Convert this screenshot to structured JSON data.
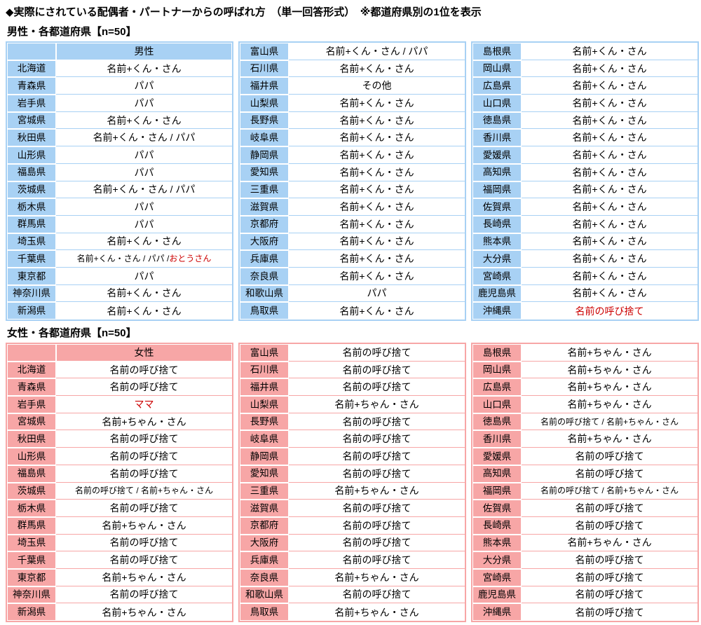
{
  "page": {
    "title": "◆実際にされている配偶者・パートナーからの呼ばれ方　（単一回答形式）　※都道府県別の1位を表示"
  },
  "colors": {
    "male_accent": "#a8d1f4",
    "female_accent": "#f7a6a6",
    "red_text": "#cc0000",
    "cell_bg": "#ffffff"
  },
  "sections": [
    {
      "id": "male",
      "label": "男性・各都道府県【n=50】",
      "column_header": "男性",
      "accent": "#a8d1f4",
      "columns": [
        {
          "has_header": true,
          "rows": [
            {
              "pref": "北海道",
              "value": "名前+くん・さん"
            },
            {
              "pref": "青森県",
              "value": "パパ"
            },
            {
              "pref": "岩手県",
              "value": "パパ"
            },
            {
              "pref": "宮城県",
              "value": "名前+くん・さん"
            },
            {
              "pref": "秋田県",
              "value": "名前+くん・さん / パパ"
            },
            {
              "pref": "山形県",
              "value": "パパ"
            },
            {
              "pref": "福島県",
              "value": "パパ"
            },
            {
              "pref": "茨城県",
              "value": "名前+くん・さん / パパ"
            },
            {
              "pref": "栃木県",
              "value": "パパ"
            },
            {
              "pref": "群馬県",
              "value": "パパ"
            },
            {
              "pref": "埼玉県",
              "value": "名前+くん・さん"
            },
            {
              "pref": "千葉県",
              "parts": [
                {
                  "text": "名前+くん・さん / パパ / "
                },
                {
                  "text": "おとうさん",
                  "red": true
                }
              ]
            },
            {
              "pref": "東京都",
              "value": "パパ"
            },
            {
              "pref": "神奈川県",
              "value": "名前+くん・さん"
            },
            {
              "pref": "新潟県",
              "value": "名前+くん・さん"
            }
          ]
        },
        {
          "has_header": false,
          "rows": [
            {
              "pref": "富山県",
              "value": "名前+くん・さん / パパ"
            },
            {
              "pref": "石川県",
              "value": "名前+くん・さん"
            },
            {
              "pref": "福井県",
              "value": "その他"
            },
            {
              "pref": "山梨県",
              "value": "名前+くん・さん"
            },
            {
              "pref": "長野県",
              "value": "名前+くん・さん"
            },
            {
              "pref": "岐阜県",
              "value": "名前+くん・さん"
            },
            {
              "pref": "静岡県",
              "value": "名前+くん・さん"
            },
            {
              "pref": "愛知県",
              "value": "名前+くん・さん"
            },
            {
              "pref": "三重県",
              "value": "名前+くん・さん"
            },
            {
              "pref": "滋賀県",
              "value": "名前+くん・さん"
            },
            {
              "pref": "京都府",
              "value": "名前+くん・さん"
            },
            {
              "pref": "大阪府",
              "value": "名前+くん・さん"
            },
            {
              "pref": "兵庫県",
              "value": "名前+くん・さん"
            },
            {
              "pref": "奈良県",
              "value": "名前+くん・さん"
            },
            {
              "pref": "和歌山県",
              "value": "パパ"
            },
            {
              "pref": "鳥取県",
              "value": "名前+くん・さん"
            }
          ]
        },
        {
          "has_header": false,
          "rows": [
            {
              "pref": "島根県",
              "value": "名前+くん・さん"
            },
            {
              "pref": "岡山県",
              "value": "名前+くん・さん"
            },
            {
              "pref": "広島県",
              "value": "名前+くん・さん"
            },
            {
              "pref": "山口県",
              "value": "名前+くん・さん"
            },
            {
              "pref": "徳島県",
              "value": "名前+くん・さん"
            },
            {
              "pref": "香川県",
              "value": "名前+くん・さん"
            },
            {
              "pref": "愛媛県",
              "value": "名前+くん・さん"
            },
            {
              "pref": "高知県",
              "value": "名前+くん・さん"
            },
            {
              "pref": "福岡県",
              "value": "名前+くん・さん"
            },
            {
              "pref": "佐賀県",
              "value": "名前+くん・さん"
            },
            {
              "pref": "長崎県",
              "value": "名前+くん・さん"
            },
            {
              "pref": "熊本県",
              "value": "名前+くん・さん"
            },
            {
              "pref": "大分県",
              "value": "名前+くん・さん"
            },
            {
              "pref": "宮崎県",
              "value": "名前+くん・さん"
            },
            {
              "pref": "鹿児島県",
              "value": "名前+くん・さん"
            },
            {
              "pref": "沖縄県",
              "value": "名前の呼び捨て",
              "red": true
            }
          ]
        }
      ]
    },
    {
      "id": "female",
      "label": "女性・各都道府県【n=50】",
      "column_header": "女性",
      "accent": "#f7a6a6",
      "columns": [
        {
          "has_header": true,
          "rows": [
            {
              "pref": "北海道",
              "value": "名前の呼び捨て"
            },
            {
              "pref": "青森県",
              "value": "名前の呼び捨て"
            },
            {
              "pref": "岩手県",
              "value": "ママ",
              "red": true
            },
            {
              "pref": "宮城県",
              "value": "名前+ちゃん・さん"
            },
            {
              "pref": "秋田県",
              "value": "名前の呼び捨て"
            },
            {
              "pref": "山形県",
              "value": "名前の呼び捨て"
            },
            {
              "pref": "福島県",
              "value": "名前の呼び捨て"
            },
            {
              "pref": "茨城県",
              "value": "名前の呼び捨て / 名前+ちゃん・さん"
            },
            {
              "pref": "栃木県",
              "value": "名前の呼び捨て"
            },
            {
              "pref": "群馬県",
              "value": "名前+ちゃん・さん"
            },
            {
              "pref": "埼玉県",
              "value": "名前の呼び捨て"
            },
            {
              "pref": "千葉県",
              "value": "名前の呼び捨て"
            },
            {
              "pref": "東京都",
              "value": "名前+ちゃん・さん"
            },
            {
              "pref": "神奈川県",
              "value": "名前の呼び捨て"
            },
            {
              "pref": "新潟県",
              "value": "名前+ちゃん・さん"
            }
          ]
        },
        {
          "has_header": false,
          "rows": [
            {
              "pref": "富山県",
              "value": "名前の呼び捨て"
            },
            {
              "pref": "石川県",
              "value": "名前の呼び捨て"
            },
            {
              "pref": "福井県",
              "value": "名前の呼び捨て"
            },
            {
              "pref": "山梨県",
              "value": "名前+ちゃん・さん"
            },
            {
              "pref": "長野県",
              "value": "名前の呼び捨て"
            },
            {
              "pref": "岐阜県",
              "value": "名前の呼び捨て"
            },
            {
              "pref": "静岡県",
              "value": "名前の呼び捨て"
            },
            {
              "pref": "愛知県",
              "value": "名前の呼び捨て"
            },
            {
              "pref": "三重県",
              "value": "名前+ちゃん・さん"
            },
            {
              "pref": "滋賀県",
              "value": "名前の呼び捨て"
            },
            {
              "pref": "京都府",
              "value": "名前の呼び捨て"
            },
            {
              "pref": "大阪府",
              "value": "名前の呼び捨て"
            },
            {
              "pref": "兵庫県",
              "value": "名前の呼び捨て"
            },
            {
              "pref": "奈良県",
              "value": "名前+ちゃん・さん"
            },
            {
              "pref": "和歌山県",
              "value": "名前の呼び捨て"
            },
            {
              "pref": "鳥取県",
              "value": "名前+ちゃん・さん"
            }
          ]
        },
        {
          "has_header": false,
          "rows": [
            {
              "pref": "島根県",
              "value": "名前+ちゃん・さん"
            },
            {
              "pref": "岡山県",
              "value": "名前+ちゃん・さん"
            },
            {
              "pref": "広島県",
              "value": "名前+ちゃん・さん"
            },
            {
              "pref": "山口県",
              "value": "名前+ちゃん・さん"
            },
            {
              "pref": "徳島県",
              "value": "名前の呼び捨て / 名前+ちゃん・さん"
            },
            {
              "pref": "香川県",
              "value": "名前+ちゃん・さん"
            },
            {
              "pref": "愛媛県",
              "value": "名前の呼び捨て"
            },
            {
              "pref": "高知県",
              "value": "名前の呼び捨て"
            },
            {
              "pref": "福岡県",
              "value": "名前の呼び捨て / 名前+ちゃん・さん"
            },
            {
              "pref": "佐賀県",
              "value": "名前の呼び捨て"
            },
            {
              "pref": "長崎県",
              "value": "名前の呼び捨て"
            },
            {
              "pref": "熊本県",
              "value": "名前+ちゃん・さん"
            },
            {
              "pref": "大分県",
              "value": "名前の呼び捨て"
            },
            {
              "pref": "宮崎県",
              "value": "名前の呼び捨て"
            },
            {
              "pref": "鹿児島県",
              "value": "名前の呼び捨て"
            },
            {
              "pref": "沖縄県",
              "value": "名前の呼び捨て"
            }
          ]
        }
      ]
    }
  ]
}
